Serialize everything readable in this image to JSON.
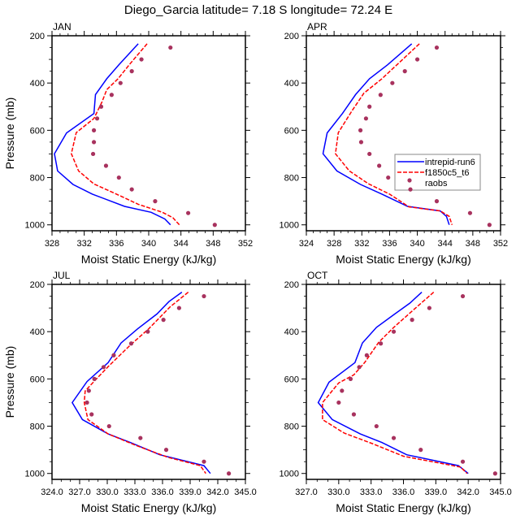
{
  "title": "Diego_Garcia  latitude= 7.18 S longitude= 72.24 E",
  "colors": {
    "intrepid": "#0000ff",
    "f1850": "#ff0000",
    "raobs": "#a8325e"
  },
  "legend": {
    "panel": "APR",
    "entries": [
      "intrepid-run6",
      "f1850c5_t6",
      "raobs"
    ]
  },
  "chart_data": [
    {
      "type": "line",
      "title": "JAN",
      "xlabel": "Moist Static Energy (kJ/kg)",
      "ylabel": "Pressure (mb)",
      "xlim": [
        328,
        352
      ],
      "ylim": [
        200,
        1025
      ],
      "y_reversed": true,
      "xticks": [
        328,
        332,
        336,
        340,
        344,
        348,
        352
      ],
      "xtick_labels": [
        "328",
        "332",
        "336",
        "340",
        "344",
        "348",
        "352"
      ],
      "yticks": [
        200,
        400,
        600,
        800,
        1000
      ],
      "ytick_labels": [
        "200",
        "400",
        "600",
        "800",
        "1000"
      ],
      "series": [
        {
          "name": "intrepid-run6",
          "style": "solid",
          "points": [
            [
              338.7,
              234
            ],
            [
              336.3,
              323
            ],
            [
              334.8,
              382
            ],
            [
              333.4,
              449
            ],
            [
              333.2,
              529
            ],
            [
              329.8,
              611
            ],
            [
              328.3,
              699
            ],
            [
              328.7,
              772
            ],
            [
              330.6,
              829
            ],
            [
              333.0,
              870
            ],
            [
              337.0,
              922
            ],
            [
              340.3,
              947
            ],
            [
              342.0,
              975
            ],
            [
              342.7,
              1000
            ]
          ]
        },
        {
          "name": "f1850c5_t6",
          "style": "dashed",
          "points": [
            [
              339.8,
              234
            ],
            [
              337.7,
              318
            ],
            [
              336.2,
              382
            ],
            [
              334.8,
              428
            ],
            [
              334.2,
              480
            ],
            [
              333.2,
              550
            ],
            [
              331.0,
              610
            ],
            [
              330.4,
              699
            ],
            [
              331.3,
              772
            ],
            [
              333.2,
              827
            ],
            [
              336.0,
              870
            ],
            [
              338.7,
              913
            ],
            [
              341.7,
              947
            ],
            [
              343.0,
              970
            ],
            [
              343.8,
              1000
            ]
          ]
        },
        {
          "name": "raobs",
          "style": "markers",
          "points": [
            [
              342.7,
              250
            ],
            [
              339.1,
              300
            ],
            [
              337.9,
              350
            ],
            [
              336.5,
              400
            ],
            [
              335.4,
              450
            ],
            [
              334.1,
              500
            ],
            [
              333.6,
              550
            ],
            [
              333.2,
              600
            ],
            [
              333.2,
              650
            ],
            [
              333.1,
              700
            ],
            [
              334.7,
              750
            ],
            [
              336.3,
              800
            ],
            [
              337.9,
              850
            ],
            [
              340.8,
              900
            ],
            [
              344.9,
              950
            ],
            [
              348.2,
              1000
            ]
          ]
        }
      ]
    },
    {
      "type": "line",
      "title": "APR",
      "xlabel": "Moist Static Energy (kJ/kg)",
      "ylabel": "",
      "xlim": [
        324,
        352
      ],
      "ylim": [
        200,
        1025
      ],
      "y_reversed": true,
      "xticks": [
        324,
        328,
        332,
        336,
        340,
        344,
        348,
        352
      ],
      "xtick_labels": [
        "324",
        "328",
        "332",
        "336",
        "340",
        "344",
        "348",
        "352"
      ],
      "yticks": [
        200,
        400,
        600,
        800,
        1000
      ],
      "ytick_labels": [
        "200",
        "400",
        "600",
        "800",
        "1000"
      ],
      "series": [
        {
          "name": "intrepid-run6",
          "style": "solid",
          "points": [
            [
              339.2,
              234
            ],
            [
              335.7,
              323
            ],
            [
              333.1,
              382
            ],
            [
              331.1,
              449
            ],
            [
              329.2,
              529
            ],
            [
              327.0,
              611
            ],
            [
              326.4,
              699
            ],
            [
              328.4,
              772
            ],
            [
              331.8,
              829
            ],
            [
              334.9,
              870
            ],
            [
              338.6,
              922
            ],
            [
              343.3,
              941
            ],
            [
              344.2,
              964
            ],
            [
              344.6,
              1000
            ]
          ]
        },
        {
          "name": "f1850c5_t6",
          "style": "dashed",
          "points": [
            [
              340.3,
              234
            ],
            [
              337.6,
              308
            ],
            [
              334.9,
              382
            ],
            [
              332.3,
              443
            ],
            [
              330.6,
              517
            ],
            [
              328.6,
              610
            ],
            [
              328.2,
              699
            ],
            [
              330.2,
              772
            ],
            [
              333.0,
              827
            ],
            [
              336.0,
              870
            ],
            [
              338.8,
              924
            ],
            [
              343.3,
              941
            ],
            [
              344.6,
              964
            ],
            [
              345.0,
              1000
            ]
          ]
        },
        {
          "name": "raobs",
          "style": "markers",
          "points": [
            [
              342.8,
              250
            ],
            [
              340.0,
              300
            ],
            [
              338.2,
              350
            ],
            [
              336.4,
              400
            ],
            [
              334.7,
              450
            ],
            [
              333.1,
              500
            ],
            [
              332.6,
              550
            ],
            [
              331.8,
              600
            ],
            [
              331.9,
              650
            ],
            [
              333.1,
              700
            ],
            [
              334.5,
              750
            ],
            [
              335.8,
              800
            ],
            [
              339.0,
              850
            ],
            [
              342.8,
              900
            ],
            [
              347.6,
              950
            ],
            [
              350.4,
              1000
            ]
          ]
        }
      ]
    },
    {
      "type": "line",
      "title": "JUL",
      "xlabel": "Moist Static Energy (kJ/kg)",
      "ylabel": "Pressure (mb)",
      "xlim": [
        324,
        345
      ],
      "ylim": [
        200,
        1025
      ],
      "y_reversed": true,
      "xticks": [
        324,
        327,
        330,
        333,
        336,
        339,
        342,
        345
      ],
      "xtick_labels": [
        "324.0",
        "327.0",
        "330.0",
        "333.0",
        "336.0",
        "339.0",
        "342.0",
        "345.0"
      ],
      "yticks": [
        200,
        400,
        600,
        800,
        1000
      ],
      "ytick_labels": [
        "200",
        "400",
        "600",
        "800",
        "1000"
      ],
      "series": [
        {
          "name": "intrepid-run6",
          "style": "solid",
          "points": [
            [
              338.1,
              233
            ],
            [
              336.7,
              273
            ],
            [
              335.4,
              325
            ],
            [
              333.3,
              388
            ],
            [
              331.5,
              448
            ],
            [
              330.1,
              531
            ],
            [
              327.8,
              611
            ],
            [
              326.2,
              700
            ],
            [
              327.3,
              772
            ],
            [
              330.1,
              833
            ],
            [
              332.5,
              869
            ],
            [
              335.7,
              921
            ],
            [
              340.5,
              967
            ],
            [
              341.2,
              1000
            ]
          ]
        },
        {
          "name": "f1850c5_t6",
          "style": "dashed",
          "points": [
            [
              338.8,
              233
            ],
            [
              336.8,
              296
            ],
            [
              334.5,
              388
            ],
            [
              332.5,
              457
            ],
            [
              330.1,
              548
            ],
            [
              328.7,
              605
            ],
            [
              327.6,
              651
            ],
            [
              327.5,
              700
            ],
            [
              327.9,
              772
            ],
            [
              330.1,
              833
            ],
            [
              333.1,
              881
            ],
            [
              336.6,
              932
            ],
            [
              340.1,
              967
            ],
            [
              340.7,
              1000
            ]
          ]
        },
        {
          "name": "raobs",
          "style": "markers",
          "points": [
            [
              340.5,
              250
            ],
            [
              337.8,
              300
            ],
            [
              336.1,
              350
            ],
            [
              334.4,
              400
            ],
            [
              332.6,
              450
            ],
            [
              330.7,
              500
            ],
            [
              329.6,
              550
            ],
            [
              328.6,
              600
            ],
            [
              328.0,
              650
            ],
            [
              327.8,
              700
            ],
            [
              328.3,
              750
            ],
            [
              330.2,
              800
            ],
            [
              333.6,
              850
            ],
            [
              336.4,
              900
            ],
            [
              340.5,
              950
            ],
            [
              343.2,
              1000
            ]
          ]
        }
      ]
    },
    {
      "type": "line",
      "title": "OCT",
      "xlabel": "Moist Static Energy (kJ/kg)",
      "ylabel": "",
      "xlim": [
        327,
        345
      ],
      "ylim": [
        200,
        1025
      ],
      "y_reversed": true,
      "xticks": [
        327,
        330,
        333,
        336,
        339,
        342,
        345
      ],
      "xtick_labels": [
        "327.0",
        "330.0",
        "333.0",
        "336.0",
        "339.0",
        "342.0",
        "345.0"
      ],
      "yticks": [
        200,
        400,
        600,
        800,
        1000
      ],
      "ytick_labels": [
        "200",
        "400",
        "600",
        "800",
        "1000"
      ],
      "series": [
        {
          "name": "intrepid-run6",
          "style": "solid",
          "points": [
            [
              337.7,
              233
            ],
            [
              336.6,
              279
            ],
            [
              335.2,
              325
            ],
            [
              333.5,
              382
            ],
            [
              332.2,
              448
            ],
            [
              331.5,
              531
            ],
            [
              329.1,
              614
            ],
            [
              328.1,
              700
            ],
            [
              329.4,
              772
            ],
            [
              332.0,
              833
            ],
            [
              334.0,
              869
            ],
            [
              336.3,
              921
            ],
            [
              341.1,
              967
            ],
            [
              342.0,
              1000
            ]
          ]
        },
        {
          "name": "f1850c5_t6",
          "style": "dashed",
          "points": [
            [
              338.8,
              233
            ],
            [
              336.8,
              313
            ],
            [
              335.1,
              382
            ],
            [
              333.7,
              445
            ],
            [
              332.4,
              531
            ],
            [
              331.4,
              583
            ],
            [
              330.0,
              617
            ],
            [
              328.5,
              700
            ],
            [
              328.5,
              772
            ],
            [
              330.5,
              829
            ],
            [
              333.2,
              875
            ],
            [
              336.0,
              927
            ],
            [
              341.3,
              973
            ],
            [
              341.9,
              1000
            ]
          ]
        },
        {
          "name": "raobs",
          "style": "markers",
          "points": [
            [
              341.5,
              250
            ],
            [
              338.4,
              300
            ],
            [
              336.8,
              350
            ],
            [
              335.1,
              400
            ],
            [
              333.9,
              450
            ],
            [
              332.6,
              500
            ],
            [
              331.9,
              550
            ],
            [
              331.1,
              600
            ],
            [
              330.3,
              650
            ],
            [
              330.0,
              700
            ],
            [
              331.4,
              750
            ],
            [
              333.5,
              800
            ],
            [
              335.1,
              850
            ],
            [
              337.6,
              900
            ],
            [
              341.5,
              950
            ],
            [
              344.5,
              1000
            ]
          ]
        }
      ]
    }
  ]
}
